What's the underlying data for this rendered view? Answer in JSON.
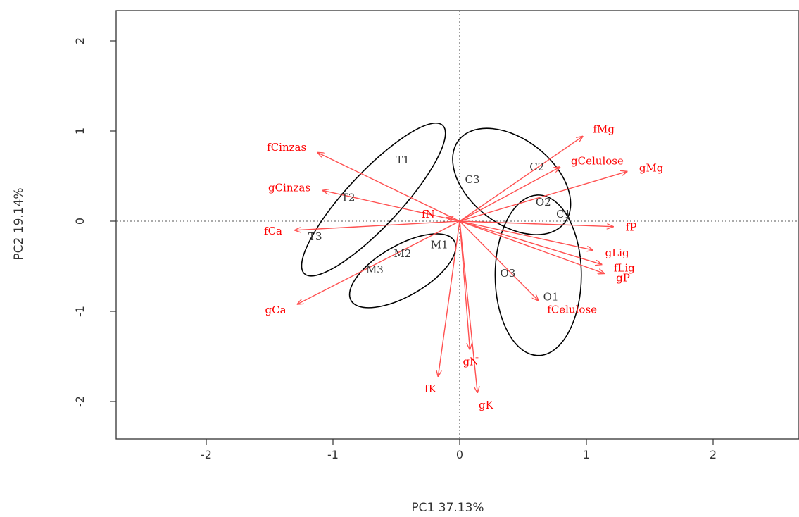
{
  "chart_data": {
    "type": "scatter",
    "subtype": "biplot",
    "xlabel": "PC1 37.13%",
    "ylabel": "PC2 19.14%",
    "xlim": [
      -2.7,
      2.7
    ],
    "ylim": [
      -2.4,
      2.4
    ],
    "x_ticks": [
      "-2",
      "-1",
      "0",
      "1",
      "2"
    ],
    "y_ticks": [
      "-2",
      "-1",
      "0",
      "1",
      "2"
    ],
    "x_tick_values": [
      -2,
      -1,
      0,
      1,
      2
    ],
    "y_tick_values": [
      -2,
      -1,
      0,
      1,
      2
    ],
    "zero_reference_lines": true,
    "observations": [
      {
        "label": "T1",
        "x": -0.45,
        "y": 0.68
      },
      {
        "label": "T2",
        "x": -0.88,
        "y": 0.26
      },
      {
        "label": "T3",
        "x": -1.14,
        "y": -0.17
      },
      {
        "label": "M1",
        "x": -0.16,
        "y": -0.26
      },
      {
        "label": "M2",
        "x": -0.45,
        "y": -0.36
      },
      {
        "label": "M3",
        "x": -0.67,
        "y": -0.54
      },
      {
        "label": "C1",
        "x": 0.82,
        "y": 0.08
      },
      {
        "label": "C2",
        "x": 0.61,
        "y": 0.6
      },
      {
        "label": "C3",
        "x": 0.1,
        "y": 0.46
      },
      {
        "label": "O1",
        "x": 0.72,
        "y": -0.84
      },
      {
        "label": "O2",
        "x": 0.66,
        "y": 0.21
      },
      {
        "label": "O3",
        "x": 0.38,
        "y": -0.58
      }
    ],
    "loadings": [
      {
        "name": "fMg",
        "x": 0.97,
        "y": 0.94
      },
      {
        "name": "gCelulose",
        "x": 0.79,
        "y": 0.6
      },
      {
        "name": "gMg",
        "x": 1.32,
        "y": 0.55
      },
      {
        "name": "fP",
        "x": 1.21,
        "y": -0.06
      },
      {
        "name": "gLig",
        "x": 1.05,
        "y": -0.32
      },
      {
        "name": "fLig",
        "x": 1.12,
        "y": -0.48
      },
      {
        "name": "gP",
        "x": 1.14,
        "y": -0.58
      },
      {
        "name": "fCelulose",
        "x": 0.62,
        "y": -0.88
      },
      {
        "name": "gN",
        "x": 0.08,
        "y": -1.42
      },
      {
        "name": "gK",
        "x": 0.14,
        "y": -1.9
      },
      {
        "name": "fK",
        "x": -0.17,
        "y": -1.72
      },
      {
        "name": "fN",
        "x": -0.1,
        "y": 0.04
      },
      {
        "name": "fCinzas",
        "x": -1.12,
        "y": 0.76
      },
      {
        "name": "gCinzas",
        "x": -1.08,
        "y": 0.34
      },
      {
        "name": "fCa",
        "x": -1.3,
        "y": -0.1
      },
      {
        "name": "gCa",
        "x": -1.28,
        "y": -0.92
      }
    ],
    "group_ellipses": [
      {
        "group": "T",
        "cx": -0.68,
        "cy": 0.24,
        "rx": 0.8,
        "ry": 0.3,
        "angle_deg": 47
      },
      {
        "group": "M",
        "cx": -0.45,
        "cy": -0.55,
        "rx": 0.47,
        "ry": 0.28,
        "angle_deg": 30
      },
      {
        "group": "C",
        "cx": 0.41,
        "cy": 0.44,
        "rx": 0.53,
        "ry": 0.47,
        "angle_deg": -38
      },
      {
        "group": "O",
        "cx": 0.62,
        "cy": -0.6,
        "rx": 0.34,
        "ry": 0.89,
        "angle_deg": 0
      }
    ],
    "colors": {
      "observations": "#333333",
      "loadings": "#ff0000",
      "arrows": "#ff5050",
      "ellipses": "#000000",
      "frame": "#333333"
    }
  }
}
